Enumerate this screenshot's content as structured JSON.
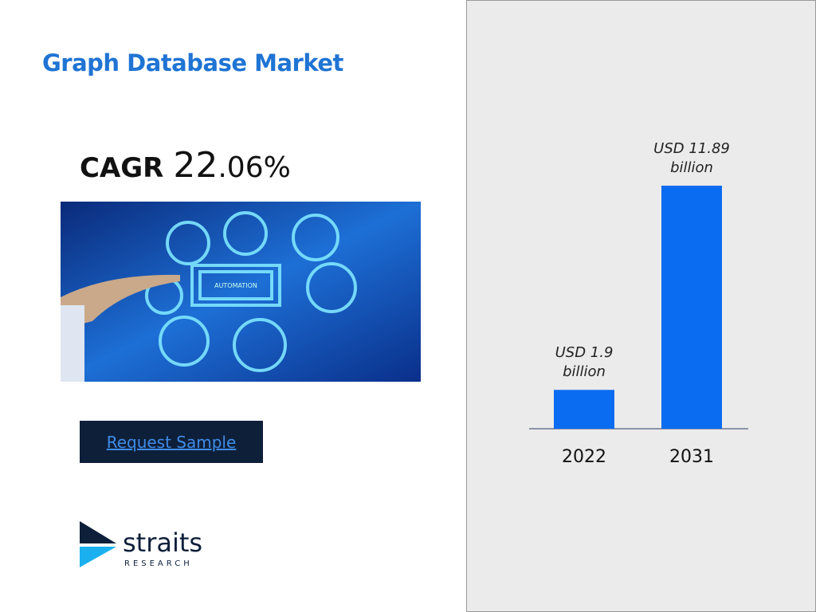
{
  "header": {
    "title": "Graph Database Market"
  },
  "cagr": {
    "label": "CAGR",
    "value": "22.06%"
  },
  "button": {
    "label": "Request Sample"
  },
  "logo": {
    "name": "straits",
    "subtitle": "RESEARCH"
  },
  "chart_data": {
    "type": "bar",
    "categories": [
      "2022",
      "2031"
    ],
    "values": [
      1.9,
      11.89
    ],
    "value_labels": [
      "USD 1.9 billion",
      "USD 11.89 billion"
    ],
    "color": "#0a6cf0"
  }
}
